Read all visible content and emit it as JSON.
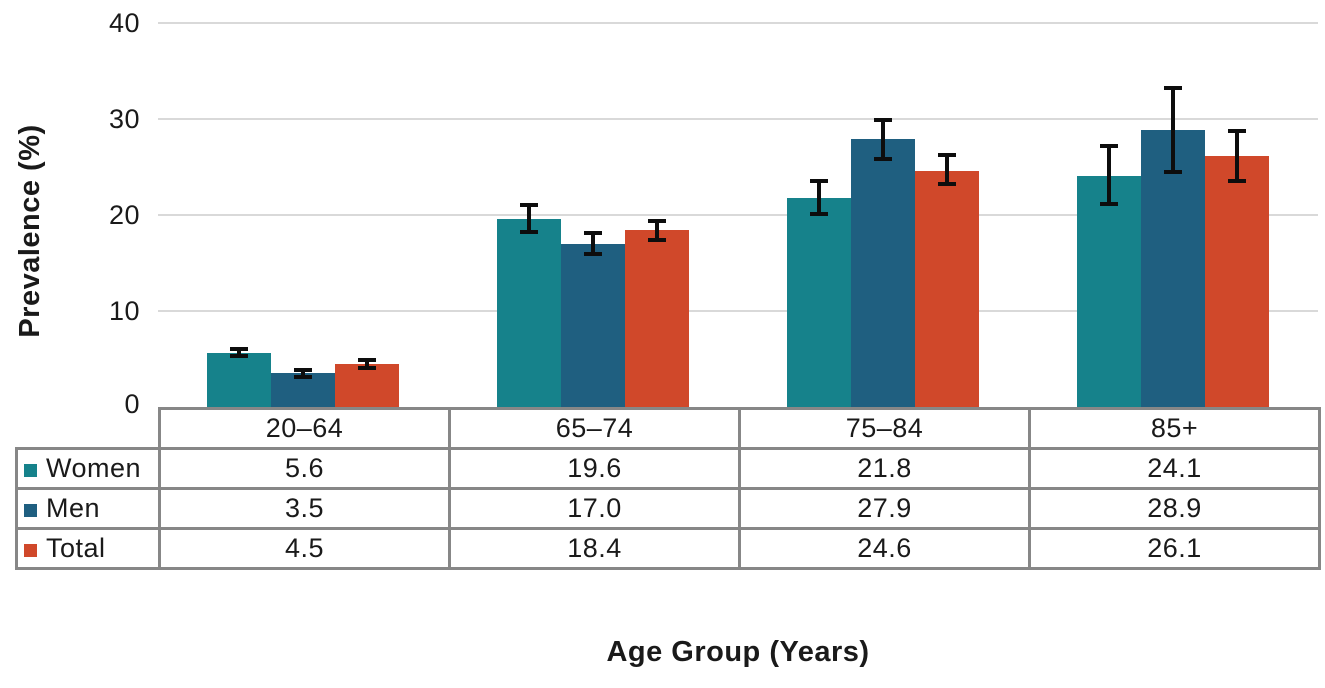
{
  "chart_data": {
    "type": "bar",
    "title": "",
    "xlabel": "Age Group (Years)",
    "ylabel": "Prevalence (%)",
    "ylim": [
      0,
      40
    ],
    "yticks": [
      0,
      10,
      20,
      30,
      40
    ],
    "grid": true,
    "error_bars": true,
    "legend_position": "table-left",
    "categories": [
      "20–64",
      "65–74",
      "75–84",
      "85+"
    ],
    "series": [
      {
        "name": "Women",
        "color": "#16828B",
        "values": [
          5.6,
          19.6,
          21.8,
          24.1
        ],
        "ci_low": [
          5.3,
          18.2,
          20.1,
          21.1
        ],
        "ci_high": [
          6.0,
          21.0,
          23.5,
          27.2
        ]
      },
      {
        "name": "Men",
        "color": "#1F5F80",
        "values": [
          3.5,
          17.0,
          27.9,
          28.9
        ],
        "ci_low": [
          3.1,
          15.9,
          25.8,
          24.5
        ],
        "ci_high": [
          3.9,
          18.1,
          29.9,
          33.2
        ]
      },
      {
        "name": "Total",
        "color": "#D0482A",
        "values": [
          4.5,
          18.4,
          24.6,
          26.1
        ],
        "ci_low": [
          4.1,
          17.4,
          23.2,
          23.5
        ],
        "ci_high": [
          4.9,
          19.4,
          26.2,
          28.7
        ]
      }
    ],
    "colors": {
      "gridline": "#d9d9d9",
      "table_border": "#878787",
      "error_bar": "#0d0d0d",
      "text": "#1a1a1a"
    }
  }
}
